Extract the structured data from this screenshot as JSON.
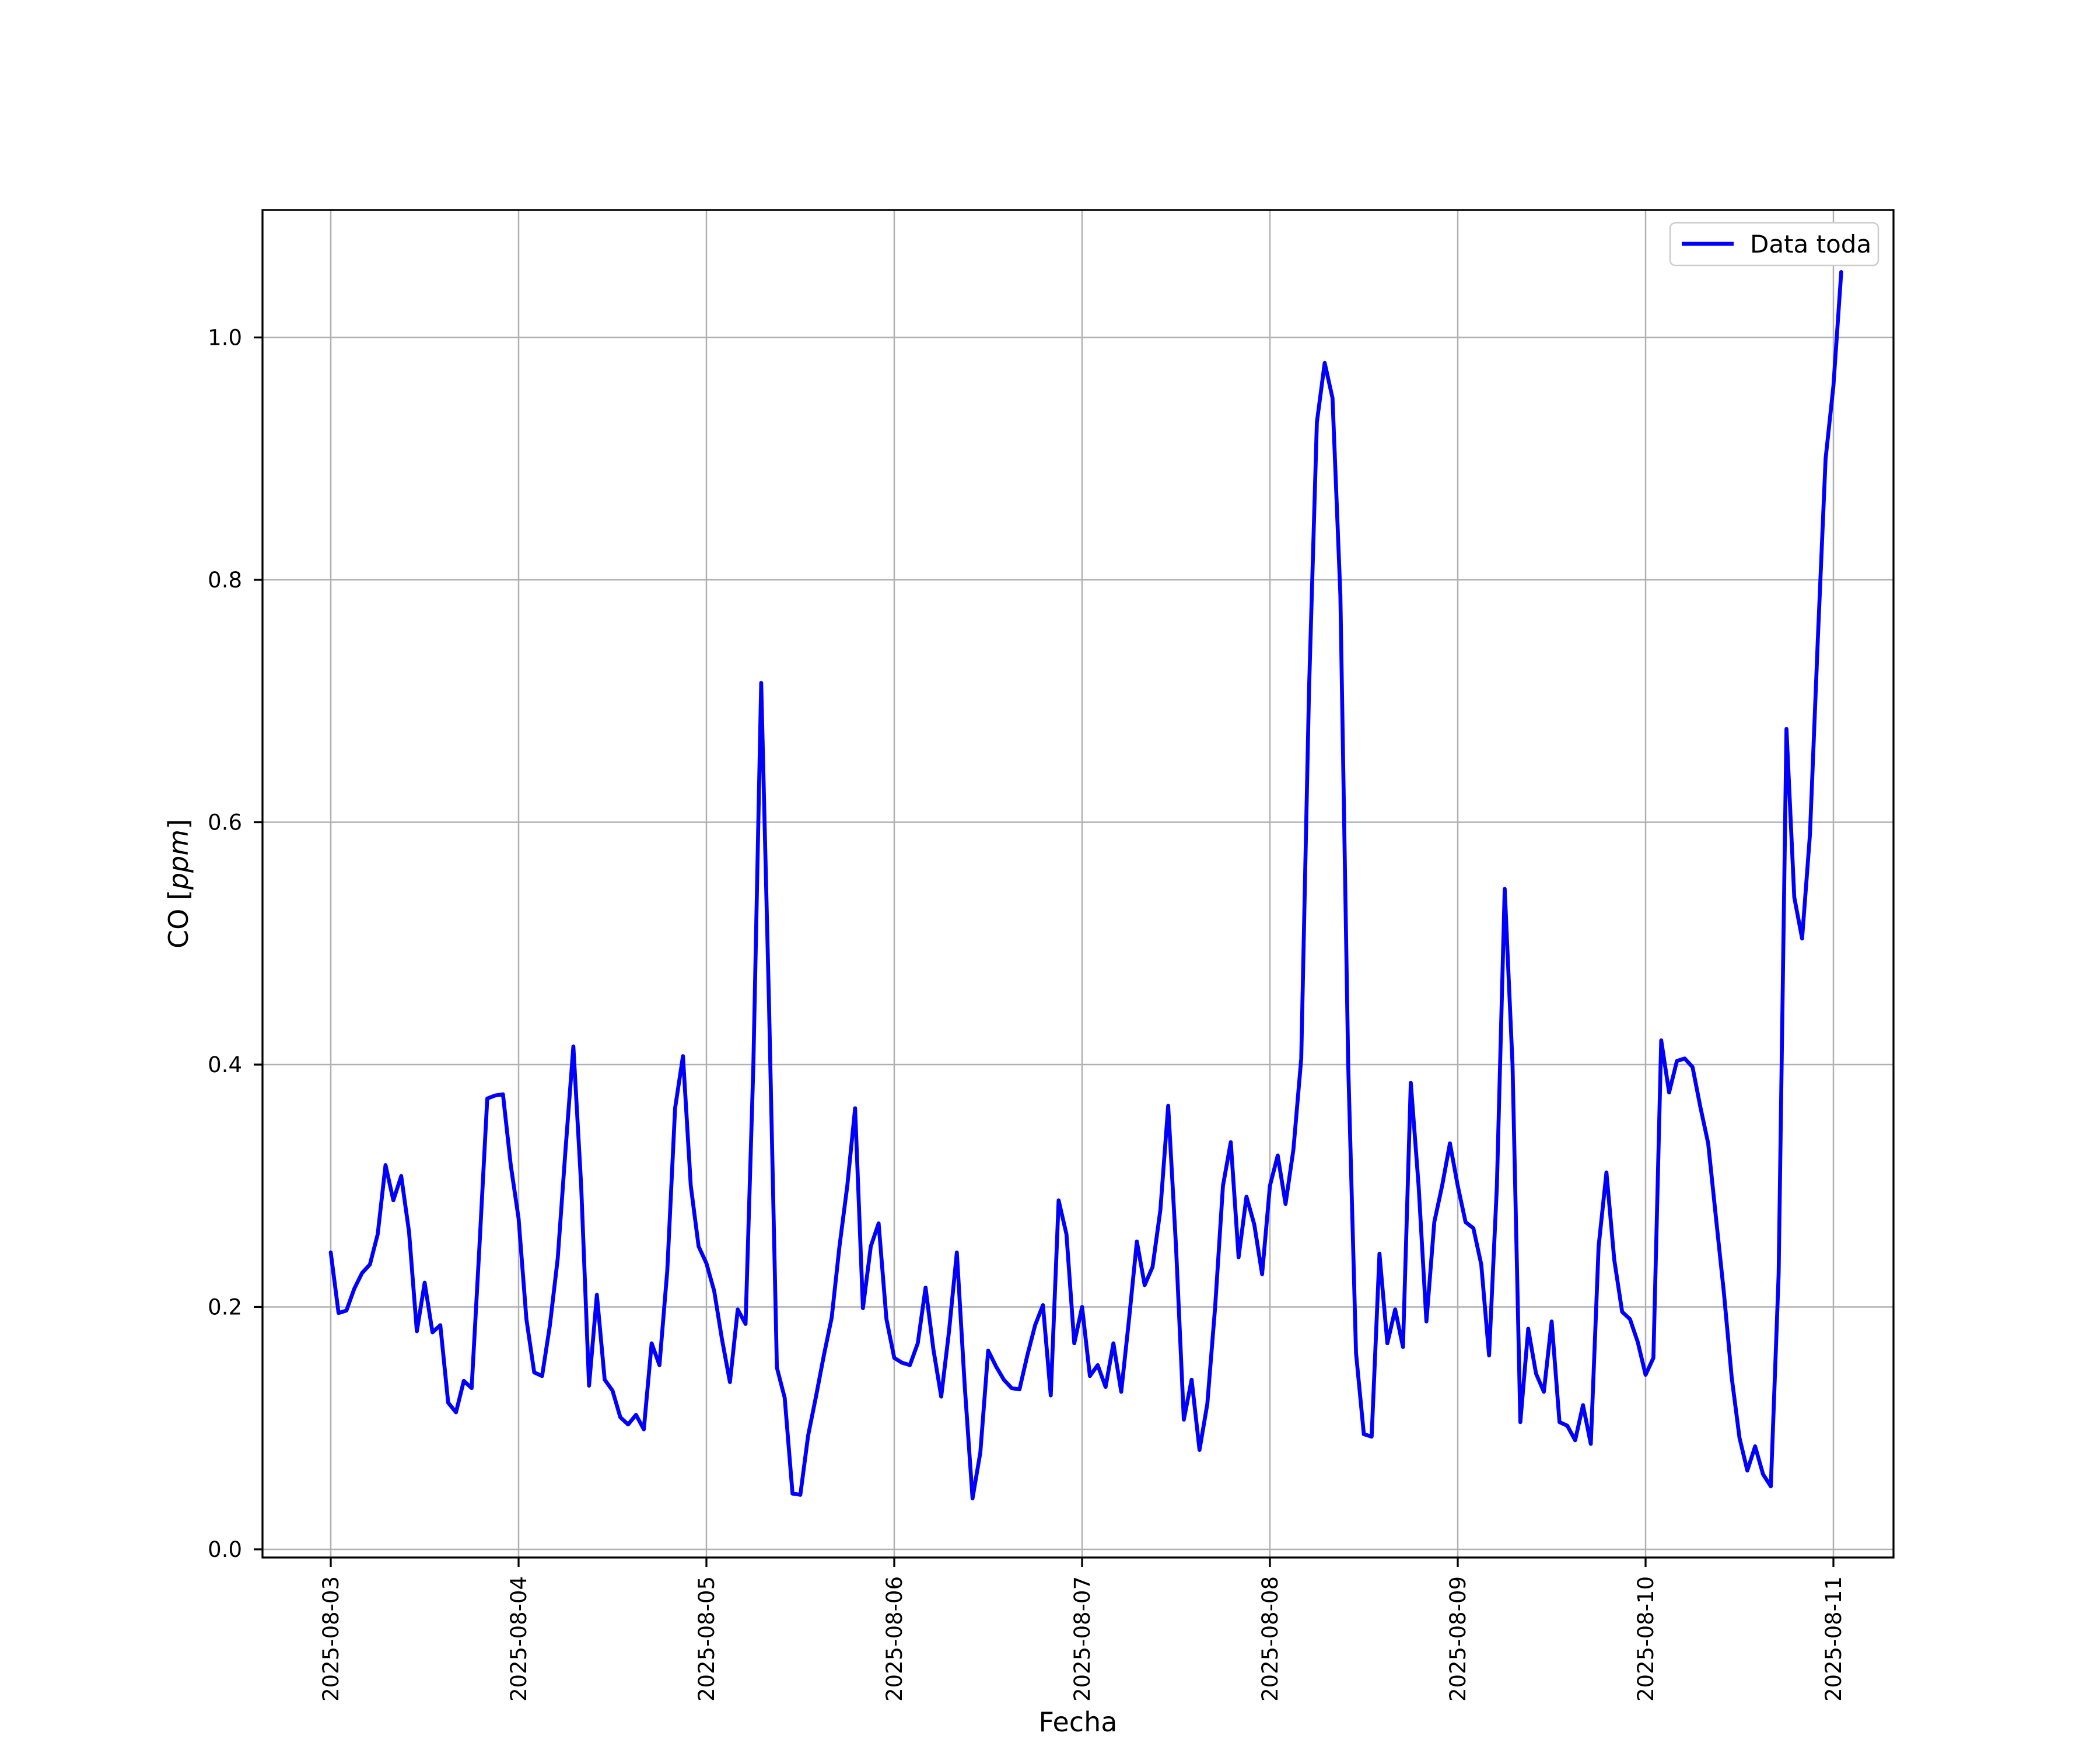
{
  "chart_data": {
    "type": "line",
    "title": "",
    "xlabel": "Fecha",
    "ylabel": "CO [ppm]",
    "ylabel_prefix": "CO [",
    "ylabel_italic": "ppm",
    "ylabel_suffix": "]",
    "x_tick_labels": [
      "2025-08-03",
      "2025-08-04",
      "2025-08-05",
      "2025-08-06",
      "2025-08-07",
      "2025-08-08",
      "2025-08-09",
      "2025-08-10",
      "2025-08-11"
    ],
    "y_tick_labels": [
      "0.0",
      "0.2",
      "0.4",
      "0.6",
      "0.8",
      "1.0"
    ],
    "y_ticks": [
      0.0,
      0.2,
      0.4,
      0.6,
      0.8,
      1.0
    ],
    "ylim": [
      -0.007,
      1.105
    ],
    "grid": true,
    "legend": {
      "position": "upper right",
      "entries": [
        {
          "label": "Data toda",
          "color": "#0000ff"
        }
      ]
    },
    "colors": {
      "line": "#0000ff",
      "grid": "#b0b0b0",
      "spine": "#000000",
      "legend_border": "#cccccc",
      "background": "#ffffff"
    },
    "series": [
      {
        "name": "Data toda",
        "color": "#0000ff",
        "start": "2025-08-03 00:00",
        "interval_hours": 1,
        "values": [
          0.245,
          0.195,
          0.197,
          0.215,
          0.228,
          0.235,
          0.26,
          0.317,
          0.288,
          0.308,
          0.262,
          0.18,
          0.22,
          0.179,
          0.185,
          0.121,
          0.113,
          0.139,
          0.133,
          0.25,
          0.372,
          0.3745,
          0.3755,
          0.317,
          0.273,
          0.19,
          0.146,
          0.143,
          0.185,
          0.24,
          0.33,
          0.415,
          0.3,
          0.135,
          0.21,
          0.14,
          0.131,
          0.109,
          0.103,
          0.111,
          0.099,
          0.17,
          0.152,
          0.23,
          0.364,
          0.407,
          0.3,
          0.25,
          0.236,
          0.213,
          0.173,
          0.138,
          0.198,
          0.186,
          0.4,
          0.715,
          0.45,
          0.15,
          0.125,
          0.046,
          0.045,
          0.094,
          0.126,
          0.16,
          0.191,
          0.25,
          0.3,
          0.364,
          0.199,
          0.25,
          0.269,
          0.19,
          0.158,
          0.154,
          0.152,
          0.17,
          0.216,
          0.165,
          0.126,
          0.18,
          0.245,
          0.135,
          0.042,
          0.08,
          0.164,
          0.151,
          0.14,
          0.133,
          0.132,
          0.16,
          0.185,
          0.2015,
          0.127,
          0.288,
          0.26,
          0.17,
          0.2,
          0.143,
          0.152,
          0.134,
          0.17,
          0.13,
          0.19,
          0.254,
          0.218,
          0.233,
          0.28,
          0.366,
          0.25,
          0.107,
          0.14,
          0.082,
          0.12,
          0.2,
          0.3,
          0.336,
          0.241,
          0.291,
          0.268,
          0.227,
          0.3,
          0.325,
          0.285,
          0.33,
          0.405,
          0.71,
          0.93,
          0.979,
          0.95,
          0.787,
          0.4,
          0.162,
          0.095,
          0.093,
          0.244,
          0.17,
          0.198,
          0.167,
          0.385,
          0.3,
          0.188,
          0.27,
          0.3,
          0.335,
          0.3,
          0.27,
          0.265,
          0.235,
          0.16,
          0.3,
          0.545,
          0.4,
          0.105,
          0.182,
          0.145,
          0.13,
          0.188,
          0.105,
          0.102,
          0.09,
          0.119,
          0.087,
          0.25,
          0.311,
          0.239,
          0.196,
          0.19,
          0.171,
          0.144,
          0.158,
          0.42,
          0.377,
          0.403,
          0.405,
          0.398,
          0.365,
          0.335,
          0.273,
          0.212,
          0.142,
          0.092,
          0.065,
          0.085,
          0.062,
          0.052,
          0.227,
          0.677,
          0.538,
          0.504,
          0.59,
          0.75,
          0.9,
          0.96,
          1.054
        ]
      }
    ]
  }
}
